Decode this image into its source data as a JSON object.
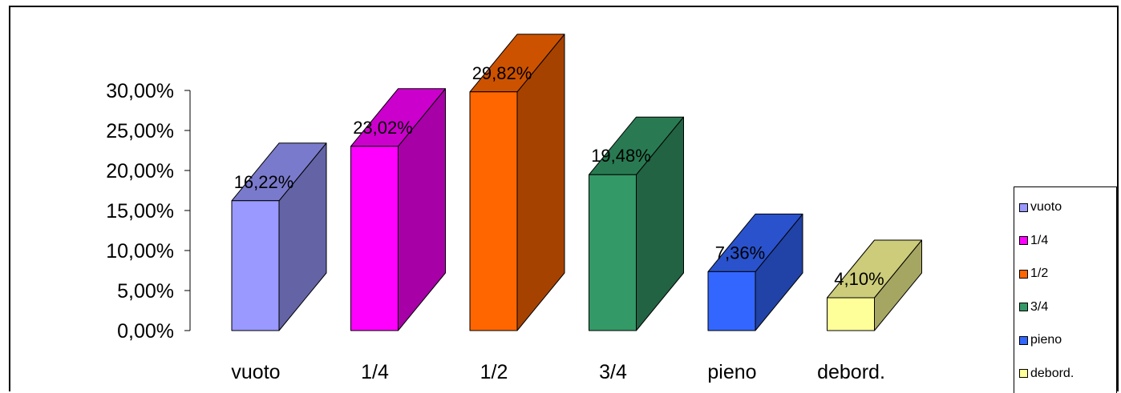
{
  "chart_data": {
    "type": "bar",
    "categories": [
      "vuoto",
      "1/4",
      "1/2",
      "3/4",
      "pieno",
      "debord."
    ],
    "values": [
      16.22,
      23.02,
      29.82,
      19.48,
      7.36,
      4.1
    ],
    "data_labels": [
      "16,22%",
      "23,02%",
      "29,82%",
      "19,48%",
      "7,36%",
      "4,10%"
    ],
    "yticks": [
      "0,00%",
      "5,00%",
      "10,00%",
      "15,00%",
      "20,00%",
      "25,00%",
      "30,00%"
    ],
    "ylim": [
      0,
      30
    ],
    "three_d": true,
    "grid": false,
    "legend_position": "right-bottom",
    "colors": [
      {
        "front": "#9999ff",
        "side": "#6363a6",
        "top": "#7a7acc"
      },
      {
        "front": "#ff00ff",
        "side": "#a600a6",
        "top": "#cc00cc"
      },
      {
        "front": "#ff6600",
        "side": "#a64200",
        "top": "#cc5200"
      },
      {
        "front": "#339966",
        "side": "#216342",
        "top": "#297a52"
      },
      {
        "front": "#3366ff",
        "side": "#2142a6",
        "top": "#2952cc"
      },
      {
        "front": "#ffff99",
        "side": "#a6a663",
        "top": "#cccc7a"
      }
    ]
  }
}
